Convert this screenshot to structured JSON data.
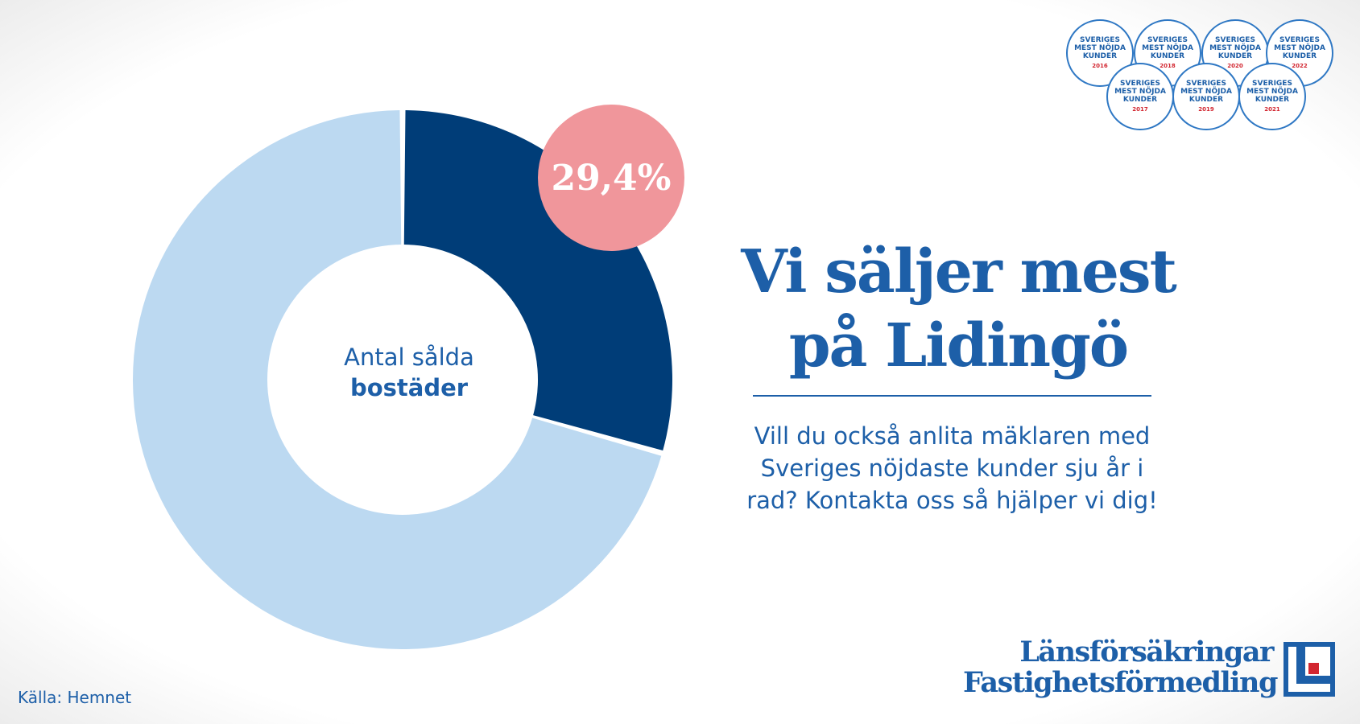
{
  "colors": {
    "accent": "#1d5fa8",
    "dark_segment": "#003d78",
    "light_segment": "#bcd9f1",
    "highlight": "#f0969b",
    "logo_red": "#d22630"
  },
  "chart_data": {
    "type": "pie",
    "categories": [
      "",
      ""
    ],
    "values": [
      29.4,
      70.6
    ],
    "data_labels": [
      "29,4%"
    ],
    "center_label": {
      "line1": "Antal sålda",
      "line2": "bostäder"
    },
    "series_colors": [
      "#003d78",
      "#bcd9f1"
    ]
  },
  "headline": "Vi säljer mest på Lidingö",
  "subtext": "Vill du också anlita mäklaren med Sveriges nöjdaste kunder sju år i rad? Kontakta oss så hjälper vi dig!",
  "source": "Källa: Hemnet",
  "badges": [
    {
      "text": "SVERIGES MEST NÖJDA KUNDER",
      "year": "2016"
    },
    {
      "text": "SVERIGES MEST NÖJDA KUNDER",
      "year": "2018"
    },
    {
      "text": "SVERIGES MEST NÖJDA KUNDER",
      "year": "2020"
    },
    {
      "text": "SVERIGES MEST NÖJDA KUNDER",
      "year": "2022"
    },
    {
      "text": "SVERIGES MEST NÖJDA KUNDER",
      "year": "2017"
    },
    {
      "text": "SVERIGES MEST NÖJDA KUNDER",
      "year": "2019"
    },
    {
      "text": "SVERIGES MEST NÖJDA KUNDER",
      "year": "2021"
    }
  ],
  "logo": {
    "line1": "Länsförsäkringar",
    "line2": "Fastighetsförmedling"
  }
}
